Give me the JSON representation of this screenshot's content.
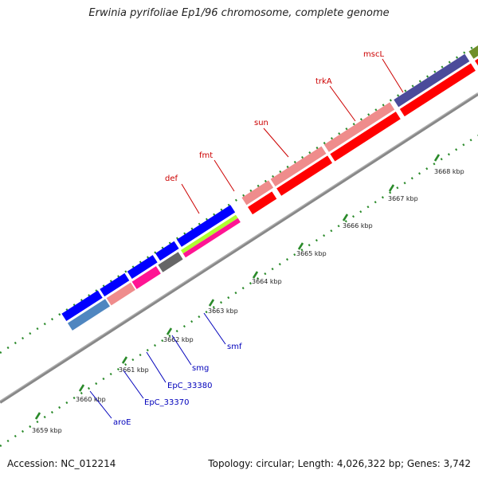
{
  "map": {
    "title": "Erwinia pyrifoliae Ep1/96 chromosome, complete genome",
    "accession": "Accession: NC_012214",
    "summary": "Topology: circular; Length: 4,026,322 bp; Genes: 3,742"
  },
  "colors": {
    "backbone": "#888888",
    "tick": "#2a8a2a",
    "label_red": "#cc0000",
    "label_blue": "#0000bb",
    "cds": "#ff0000",
    "blue_gene": "#0000ff",
    "pink_gene": "#ef8c8c",
    "navy_gene": "#4b4b9a",
    "olive_gene": "#6f8f2a",
    "magenta_gene": "#ff1493",
    "lime_gene": "#adff2f",
    "steel_gene": "#4f86c0",
    "gray_gene": "#666666",
    "orange_gene": "#ff9900"
  },
  "scale_labels": [
    "3659 kbp",
    "3660 kbp",
    "3661 kbp",
    "3662 kbp",
    "3663 kbp",
    "3664 kbp",
    "3665 kbp",
    "3666 kbp",
    "3667 kbp",
    "3668 kbp"
  ],
  "gene_labels": {
    "top": [
      "def",
      "fmt",
      "sun",
      "trkA",
      "mscL"
    ],
    "bottom": [
      "aroE",
      "EpC_33370",
      "EpC_33380",
      "smg",
      "smf"
    ]
  }
}
